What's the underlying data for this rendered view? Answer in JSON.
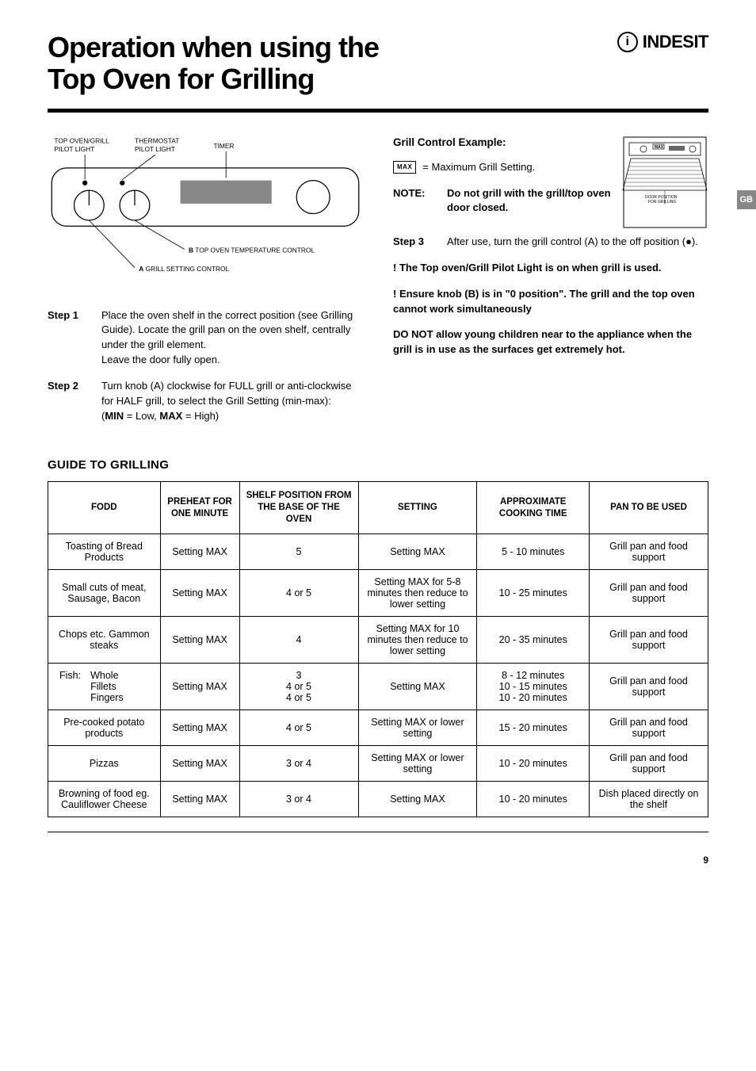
{
  "title_line1": "Operation when using the",
  "title_line2": "Top Oven for Grilling",
  "brand": {
    "icon_letter": "i",
    "name": "INDESIT"
  },
  "gb_tab": "GB",
  "diagram": {
    "label_top_left": "TOP OVEN/GRILL\nPILOT LIGHT",
    "label_thermostat": "THERMOSTAT\nPILOT LIGHT",
    "label_timer": "TIMER",
    "label_b": "B",
    "label_b_text": " TOP OVEN TEMPERATURE CONTROL",
    "label_a": "A",
    "label_a_text": " GRILL SETTING CONTROL"
  },
  "steps_left": [
    {
      "label": "Step 1",
      "text": "Place the oven shelf in the correct position (see Grilling Guide). Locate the grill pan on the oven shelf, centrally under the grill element.\nLeave the door fully open."
    },
    {
      "label": "Step 2",
      "text_pre": "Turn knob (A) clockwise for FULL grill or anti-clockwise for HALF grill, to select the Grill Setting (min-max):\n(",
      "min": "MIN",
      "mid": " = Low, ",
      "max": "MAX",
      "post": " = High)"
    }
  ],
  "right": {
    "heading": "Grill Control Example:",
    "max_icon": "MAX",
    "max_text": " = Maximum Grill Setting.",
    "note_label": "NOTE:",
    "note_text": "Do not grill with the grill/top oven door closed.",
    "oven_caption": "DOOR POSITION\nFOR GRILLING",
    "oven_top_label": "MAX",
    "step3_label": "Step 3",
    "step3_text": "After use, turn the grill control (A) to the off position (●).",
    "warn1": "! The Top oven/Grill Pilot Light is on when grill is used.",
    "warn2": "! Ensure knob (B) is in \"0 position\". The grill and the top oven cannot work simultaneously",
    "warn3": "DO NOT allow young children near to the appliance when the grill is in use as the surfaces get extremely hot."
  },
  "guide_heading": "GUIDE TO GRILLING",
  "table": {
    "headers": [
      "FODD",
      "PREHEAT FOR ONE MINUTE",
      "SHELF POSITION FROM THE BASE OF THE OVEN",
      "SETTING",
      "APPROXIMATE COOKING TIME",
      "PAN TO BE USED"
    ],
    "col_widths": [
      "17%",
      "12%",
      "18%",
      "18%",
      "17%",
      "18%"
    ],
    "rows": [
      [
        "Toasting of Bread Products",
        "Setting MAX",
        "5",
        "Setting MAX",
        "5 - 10 minutes",
        "Grill pan and food support"
      ],
      [
        "Small cuts of meat, Sausage, Bacon",
        "Setting MAX",
        "4 or 5",
        "Setting MAX for 5-8 minutes then reduce to lower setting",
        "10 - 25 minutes",
        "Grill pan and food support"
      ],
      [
        "Chops etc. Gammon steaks",
        "Setting MAX",
        "4",
        "Setting MAX for 10 minutes then reduce to lower setting",
        "20 - 35 minutes",
        "Grill pan and food support"
      ],
      [
        "__FISH__",
        "Setting MAX",
        "3\n4 or 5\n4 or 5",
        "Setting MAX",
        "8 - 12 minutes\n10 - 15 minutes\n10 - 20 minutes",
        "Grill pan and food support"
      ],
      [
        "Pre-cooked potato products",
        "Setting MAX",
        "4 or 5",
        "Setting MAX or lower setting",
        "15 - 20 minutes",
        "Grill pan and food support"
      ],
      [
        "Pizzas",
        "Setting MAX",
        "3 or 4",
        "Setting MAX or lower setting",
        "10 - 20 minutes",
        "Grill pan and food support"
      ],
      [
        "Browning of food eg. Cauliflower Cheese",
        "Setting MAX",
        "3 or 4",
        "Setting MAX",
        "10 - 20 minutes",
        "Dish placed directly on the shelf"
      ]
    ],
    "fish_label": "Fish:",
    "fish_items": "Whole\nFillets\nFingers"
  },
  "page_number": "9"
}
